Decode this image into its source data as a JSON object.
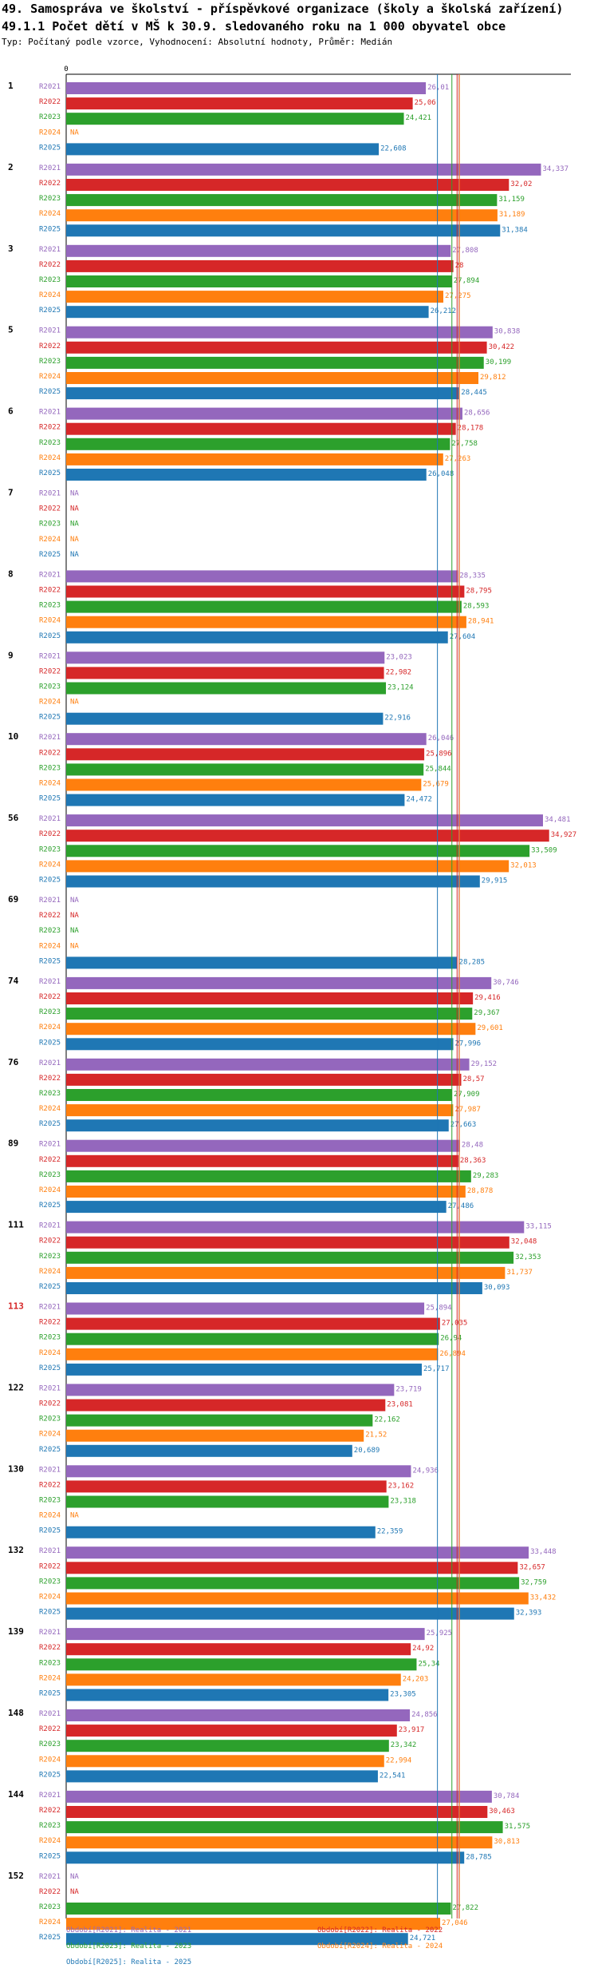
{
  "header": {
    "title": "49. Samospráva ve školství - příspěvkové organizace (školy a školská zařízení)",
    "subtitle": "49.1.1 Počet dětí v MŠ k 30.9. sledovaného roku na 1 000 obyvatel obce",
    "type_line": "Typ: Počítaný podle vzorce, Vyhodnocení: Absolutní hodnoty, Průměr: Medián"
  },
  "chart_data": {
    "type": "bar",
    "orientation": "horizontal",
    "title": "49.1.1 Počet dětí v MŠ k 30.9. sledovaného roku na 1 000 obyvatel obce",
    "xlim": [
      0,
      36.5
    ],
    "axis_zero_label": "0",
    "na_label": "NA",
    "series": [
      {
        "key": "R2021",
        "color": "#9467bd",
        "legend": "Období[R2021]: Realita - 2021"
      },
      {
        "key": "R2022",
        "color": "#d62728",
        "legend": "Období[R2022]: Realita - 2022"
      },
      {
        "key": "R2023",
        "color": "#2ca02c",
        "legend": "Období[R2023]: Realita - 2023"
      },
      {
        "key": "R2024",
        "color": "#ff7f0e",
        "legend": "Období[R2024]: Realita - 2024"
      },
      {
        "key": "R2025",
        "color": "#1f77b4",
        "legend": "Období[R2025]: Realita - 2025"
      }
    ],
    "groups": [
      {
        "label": "1",
        "highlight": false,
        "values": [
          26.01,
          25.06,
          24.421,
          null,
          22.608
        ]
      },
      {
        "label": "2",
        "highlight": false,
        "values": [
          34.337,
          32.02,
          31.159,
          31.189,
          31.384
        ]
      },
      {
        "label": "3",
        "highlight": false,
        "values": [
          27.808,
          28,
          27.894,
          27.275,
          26.212
        ]
      },
      {
        "label": "5",
        "highlight": false,
        "values": [
          30.838,
          30.422,
          30.199,
          29.812,
          28.445
        ]
      },
      {
        "label": "6",
        "highlight": false,
        "values": [
          28.656,
          28.178,
          27.758,
          27.263,
          26.048
        ]
      },
      {
        "label": "7",
        "highlight": false,
        "values": [
          null,
          null,
          null,
          null,
          null
        ]
      },
      {
        "label": "8",
        "highlight": false,
        "values": [
          28.335,
          28.795,
          28.593,
          28.941,
          27.604
        ]
      },
      {
        "label": "9",
        "highlight": false,
        "values": [
          23.023,
          22.982,
          23.124,
          null,
          22.916
        ]
      },
      {
        "label": "10",
        "highlight": false,
        "values": [
          26.046,
          25.896,
          25.844,
          25.679,
          24.472
        ]
      },
      {
        "label": "56",
        "highlight": false,
        "values": [
          34.481,
          34.927,
          33.509,
          32.013,
          29.915
        ]
      },
      {
        "label": "69",
        "highlight": false,
        "values": [
          null,
          null,
          null,
          null,
          28.285
        ]
      },
      {
        "label": "74",
        "highlight": false,
        "values": [
          30.746,
          29.416,
          29.367,
          29.601,
          27.996
        ]
      },
      {
        "label": "76",
        "highlight": false,
        "values": [
          29.152,
          28.57,
          27.909,
          27.987,
          27.663
        ]
      },
      {
        "label": "89",
        "highlight": false,
        "values": [
          28.48,
          28.363,
          29.283,
          28.878,
          27.486
        ]
      },
      {
        "label": "111",
        "highlight": false,
        "values": [
          33.115,
          32.048,
          32.353,
          31.737,
          30.093
        ]
      },
      {
        "label": "113",
        "highlight": true,
        "values": [
          25.894,
          27.035,
          26.94,
          26.894,
          25.717
        ]
      },
      {
        "label": "122",
        "highlight": false,
        "values": [
          23.719,
          23.081,
          22.162,
          21.52,
          20.689
        ]
      },
      {
        "label": "130",
        "highlight": false,
        "values": [
          24.936,
          23.162,
          23.318,
          null,
          22.359
        ]
      },
      {
        "label": "132",
        "highlight": false,
        "values": [
          33.448,
          32.657,
          32.759,
          33.432,
          32.393
        ]
      },
      {
        "label": "139",
        "highlight": false,
        "values": [
          25.925,
          24.92,
          25.34,
          24.203,
          23.305
        ]
      },
      {
        "label": "148",
        "highlight": false,
        "values": [
          24.856,
          23.917,
          23.342,
          22.994,
          22.541
        ]
      },
      {
        "label": "144",
        "highlight": false,
        "values": [
          30.784,
          30.463,
          31.575,
          30.813,
          28.785
        ]
      },
      {
        "label": "152",
        "highlight": false,
        "values": [
          null,
          null,
          27.822,
          27.046,
          24.721
        ]
      }
    ],
    "value_labels": [
      [
        "26,01",
        "25,06",
        "24,421",
        null,
        "22,608"
      ],
      [
        "34,337",
        "32,02",
        "31,159",
        "31,189",
        "31,384"
      ],
      [
        "27,808",
        "28",
        "27,894",
        "27,275",
        "26,212"
      ],
      [
        "30,838",
        "30,422",
        "30,199",
        "29,812",
        "28,445"
      ],
      [
        "28,656",
        "28,178",
        "27,758",
        "27,263",
        "26,048"
      ],
      [
        null,
        null,
        null,
        null,
        null
      ],
      [
        "28,335",
        "28,795",
        "28,593",
        "28,941",
        "27,604"
      ],
      [
        "23,023",
        "22,982",
        "23,124",
        null,
        "22,916"
      ],
      [
        "26,046",
        "25,896",
        "25,844",
        "25,679",
        "24,472"
      ],
      [
        "34,481",
        "34,927",
        "33,509",
        "32,013",
        "29,915"
      ],
      [
        null,
        null,
        null,
        null,
        "28,285"
      ],
      [
        "30,746",
        "29,416",
        "29,367",
        "29,601",
        "27,996"
      ],
      [
        "29,152",
        "28,57",
        "27,909",
        "27,987",
        "27,663"
      ],
      [
        "28,48",
        "28,363",
        "29,283",
        "28,878",
        "27,486"
      ],
      [
        "33,115",
        "32,048",
        "32,353",
        "31,737",
        "30,093"
      ],
      [
        "25,894",
        "27,035",
        "26,94",
        "26,894",
        "25,717"
      ],
      [
        "23,719",
        "23,081",
        "22,162",
        "21,52",
        "20,689"
      ],
      [
        "24,936",
        "23,162",
        "23,318",
        null,
        "22,359"
      ],
      [
        "33,448",
        "32,657",
        "32,759",
        "33,432",
        "32,393"
      ],
      [
        "25,925",
        "24,92",
        "25,34",
        "24,203",
        "23,305"
      ],
      [
        "24,856",
        "23,917",
        "23,342",
        "22,994",
        "22,541"
      ],
      [
        "30,784",
        "30,463",
        "31,575",
        "30,813",
        "28,785"
      ],
      [
        null,
        null,
        "27,822",
        "27,046",
        "24,721"
      ]
    ],
    "median_lines": [
      28.407,
      28.27,
      27.894,
      28.432,
      26.849
    ],
    "stats": [
      {
        "median": "Medián: 28,407",
        "min": "Min: 23,023",
        "max": "Max: 34,481"
      },
      {
        "median": "Medián: 28,27",
        "min": "Min: 22,982",
        "max": "Max: 34,927"
      },
      {
        "median": "Medián: 27,894",
        "min": "Min: 22,162",
        "max": "Max: 33,509"
      },
      {
        "median": "Medián: 28,432",
        "min": "Min: 21,52",
        "max": "Max: 33,432"
      },
      {
        "median": "Medián: 26,849",
        "min": "Min: 20,689",
        "max": "Max: 32,393"
      }
    ]
  }
}
